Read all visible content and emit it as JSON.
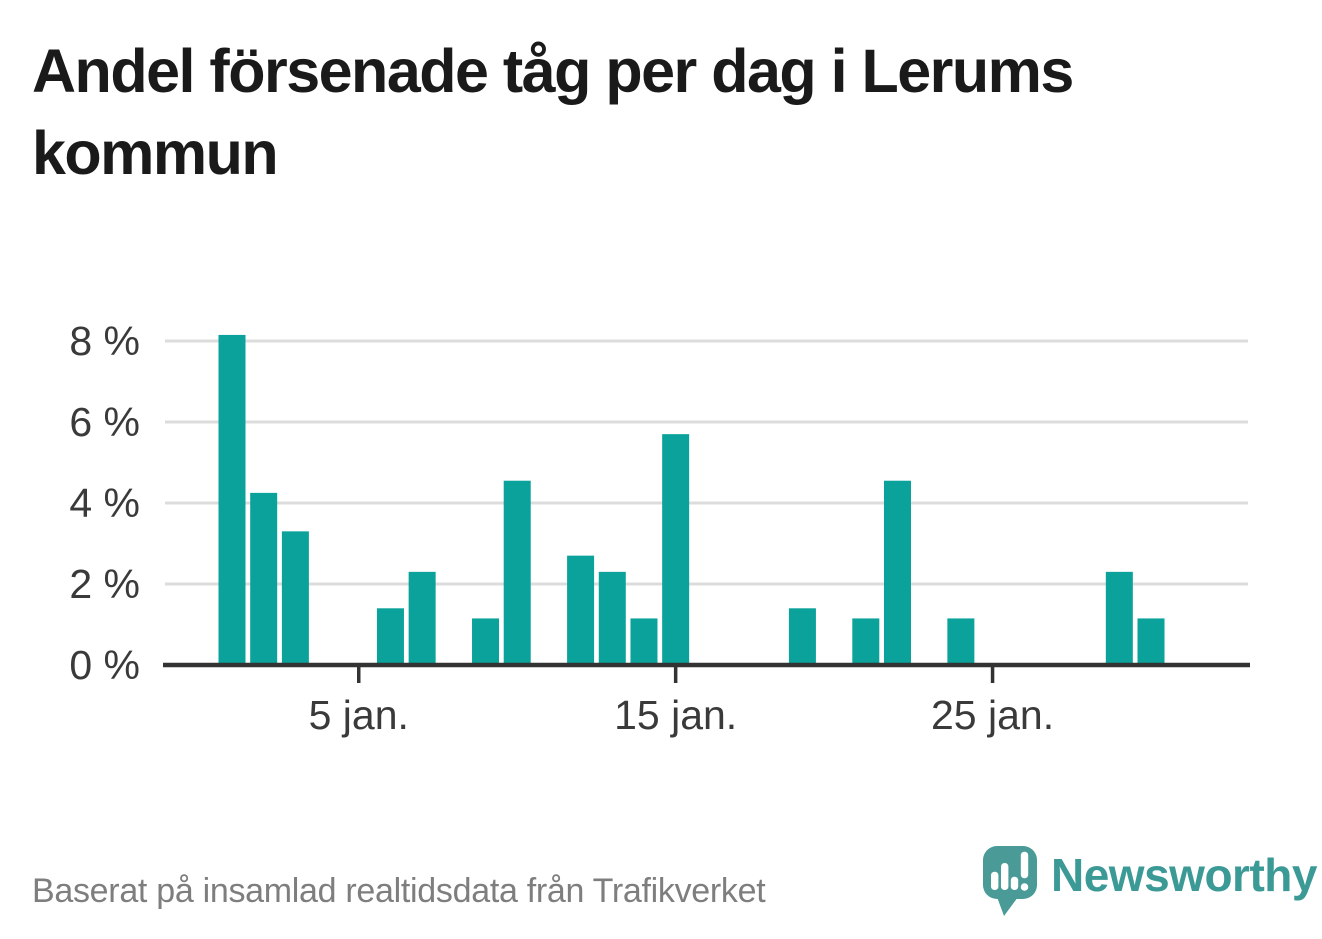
{
  "title": "Andel försenade tåg per dag i Lerums kommun",
  "source_note": "Baserat på insamlad realtidsdata från Trafikverket",
  "branding": {
    "wordmark": "Newsworthy",
    "logo_icon": "newsworthy-speech-bubble-barchart-icon",
    "mark_color": "#4a9b98",
    "wordmark_color": "#3c9a96"
  },
  "colors": {
    "background": "#ffffff",
    "bar": "#0aa29b",
    "gridline": "#dcdcdc",
    "axis_line": "#333333",
    "tick_label": "#3a3a3a",
    "title_text": "#1a1a1a",
    "footer_text": "#7e7e7e"
  },
  "chart_data": {
    "type": "bar",
    "title": "Andel försenade tåg per dag i Lerums kommun",
    "xlabel": "",
    "ylabel": "",
    "x_unit": "day of January",
    "categories": [
      1,
      2,
      3,
      4,
      5,
      6,
      7,
      8,
      9,
      10,
      11,
      12,
      13,
      14,
      15,
      16,
      17,
      18,
      19,
      20,
      21,
      22,
      23,
      24,
      25,
      26,
      27,
      28,
      29,
      30,
      31
    ],
    "values": [
      8.15,
      4.25,
      3.3,
      null,
      null,
      1.4,
      2.3,
      null,
      1.15,
      4.55,
      null,
      2.7,
      2.3,
      1.15,
      5.7,
      null,
      null,
      null,
      1.4,
      null,
      1.15,
      4.55,
      null,
      1.15,
      null,
      null,
      null,
      null,
      2.3,
      1.15,
      null
    ],
    "x_tick_days": [
      5,
      15,
      25
    ],
    "x_tick_labels": [
      "5 jan.",
      "15 jan.",
      "25 jan."
    ],
    "y_ticks": [
      0,
      2,
      4,
      6,
      8
    ],
    "y_tick_labels": [
      "0 %",
      "2 %",
      "4 %",
      "6 %",
      "8 %"
    ],
    "ylim": [
      0,
      8.6
    ],
    "grid": "horizontal",
    "legend": "none"
  }
}
